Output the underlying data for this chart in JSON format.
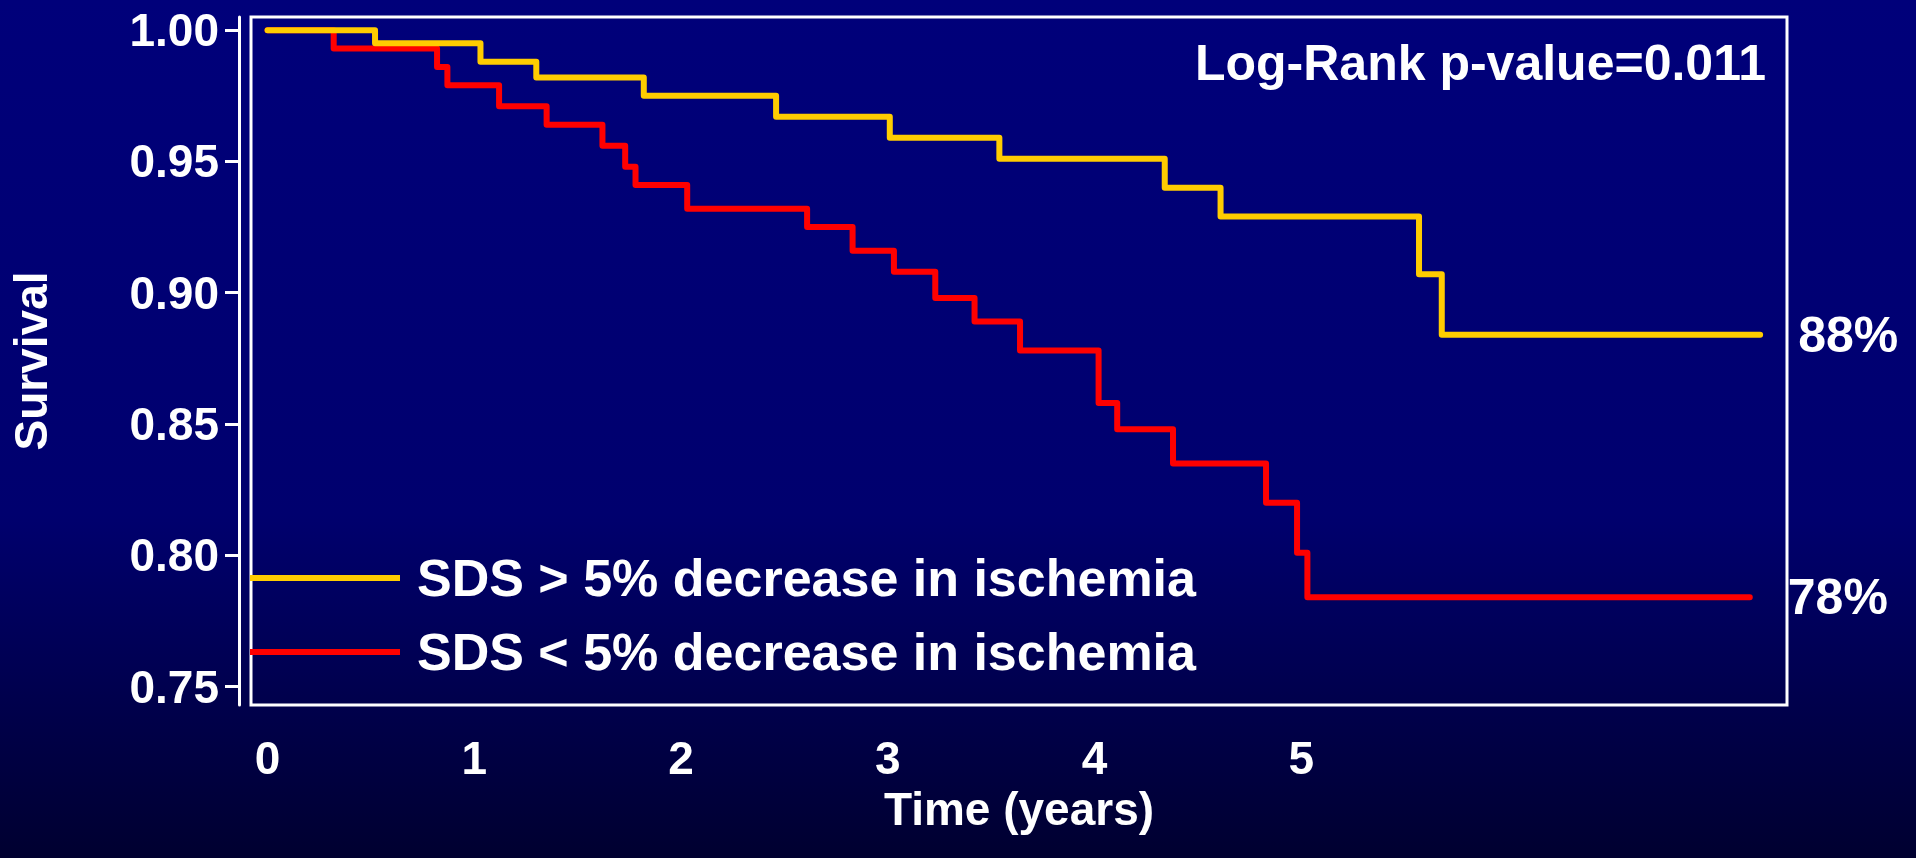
{
  "chart_data": {
    "type": "step",
    "xlabel": "Time (years)",
    "ylabel": "Survival",
    "xlim": [
      -0.08,
      7.35
    ],
    "xticks": [
      0,
      1,
      2,
      3,
      4,
      5
    ],
    "ylim": [
      0.743,
      1.005
    ],
    "yticks": [
      {
        "value": 0.75,
        "label": "0.75"
      },
      {
        "value": 0.8,
        "label": "0.80"
      },
      {
        "value": 0.85,
        "label": "0.85"
      },
      {
        "value": 0.9,
        "label": "0.90"
      },
      {
        "value": 0.95,
        "label": "0.95"
      },
      {
        "value": 1,
        "label": "1.00"
      }
    ],
    "grid": false,
    "legend": "bottom left",
    "marker": "none",
    "line_style": "solid",
    "series": [
      {
        "name": "SDS > 5% decrease in ischemia",
        "color": "#ffcc00",
        "x": [
          0,
          0.52,
          1.03,
          1.3,
          1.82,
          2.46,
          3.01,
          3.54,
          4.34,
          4.61,
          5.57,
          5.68,
          7.22
        ],
        "values": [
          1,
          0.995,
          0.988,
          0.982,
          0.975,
          0.967,
          0.959,
          0.951,
          0.94,
          0.929,
          0.907,
          0.884,
          0.884
        ]
      },
      {
        "name": "SDS < 5% decrease in ischemia",
        "color": "#ff0000",
        "x": [
          0,
          0.32,
          0.82,
          0.87,
          1.12,
          1.35,
          1.62,
          1.73,
          1.78,
          2.03,
          2.61,
          2.83,
          3.03,
          3.23,
          3.42,
          3.64,
          4.02,
          4.11,
          4.38,
          4.83,
          4.98,
          5.03,
          7.17
        ],
        "values": [
          1,
          0.993,
          0.986,
          0.979,
          0.971,
          0.964,
          0.956,
          0.948,
          0.941,
          0.932,
          0.925,
          0.916,
          0.908,
          0.898,
          0.889,
          0.878,
          0.858,
          0.848,
          0.835,
          0.82,
          0.801,
          0.784,
          0.784
        ]
      }
    ],
    "annotations": [
      "Log-Rank p-value=0.011",
      {
        "text": "88%",
        "x": 7.22,
        "y": 0.884
      },
      {
        "text": "78%",
        "x": 7.17,
        "y": 0.784
      }
    ]
  }
}
